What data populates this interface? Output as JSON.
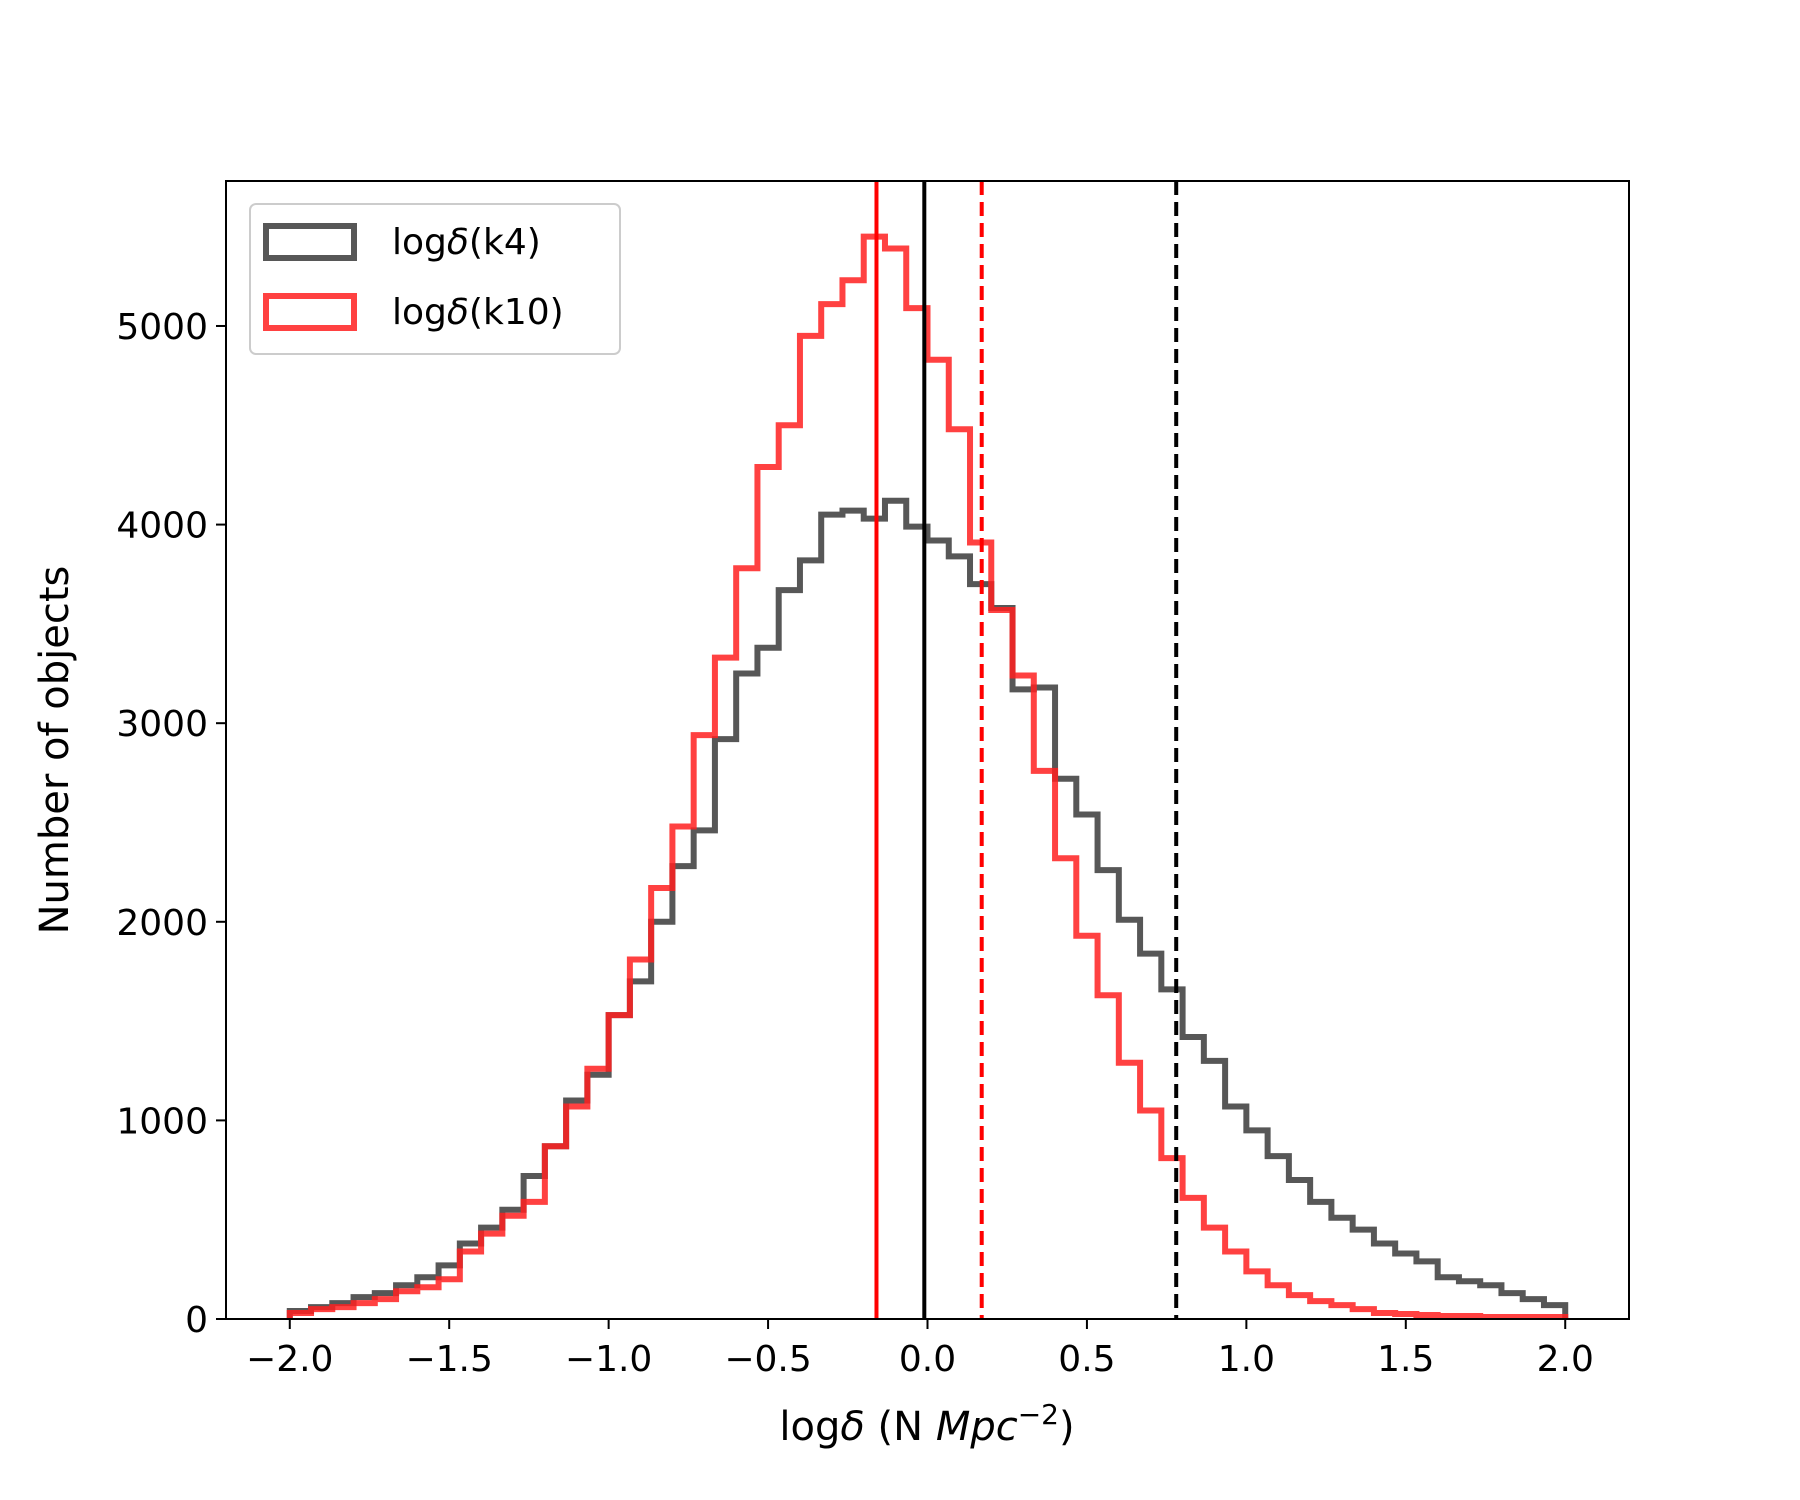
{
  "chart_data": {
    "type": "histogram",
    "xlabel_prefix": "log",
    "xlabel_delta": "δ",
    "xlabel_unit": " (N ",
    "xlabel_italic": "Mpc",
    "xlabel_exp": "−2",
    "xlabel_suffix": ")",
    "ylabel": "Number of objects",
    "xlim": [
      -2.2,
      2.2
    ],
    "ylim": [
      0,
      5730
    ],
    "xticks": [
      -2.0,
      -1.5,
      -1.0,
      -0.5,
      0.0,
      0.5,
      1.0,
      1.5,
      2.0
    ],
    "xtick_labels": [
      "−2.0",
      "−1.5",
      "−1.0",
      "−0.5",
      "0.0",
      "0.5",
      "1.0",
      "1.5",
      "2.0"
    ],
    "yticks": [
      0,
      1000,
      2000,
      3000,
      4000,
      5000
    ],
    "ytick_labels": [
      "0",
      "1000",
      "2000",
      "3000",
      "4000",
      "5000"
    ],
    "bin_edges_range": [
      -2.0,
      2.0
    ],
    "bin_count": 60,
    "legend_location": "upper-left",
    "series": [
      {
        "name": "k4",
        "legend_label_prefix": "log",
        "legend_label_delta": "δ",
        "legend_label_suffix": "(k4)",
        "color": "#3a3a3a",
        "values": [
          40,
          60,
          80,
          110,
          130,
          170,
          210,
          270,
          380,
          460,
          550,
          720,
          870,
          1100,
          1230,
          1530,
          1700,
          2000,
          2280,
          2460,
          2920,
          3250,
          3380,
          3670,
          3820,
          4050,
          4070,
          4030,
          4120,
          3990,
          3920,
          3840,
          3700,
          3580,
          3170,
          3180,
          2720,
          2540,
          2260,
          2010,
          1840,
          1660,
          1420,
          1300,
          1070,
          950,
          820,
          700,
          590,
          510,
          450,
          380,
          330,
          290,
          210,
          190,
          170,
          130,
          100,
          70
        ]
      },
      {
        "name": "k10",
        "legend_label_prefix": "log",
        "legend_label_delta": "δ",
        "legend_label_suffix": "(k10)",
        "color": "#ff2020",
        "values": [
          30,
          50,
          60,
          80,
          100,
          140,
          160,
          200,
          340,
          430,
          520,
          590,
          870,
          1070,
          1260,
          1530,
          1810,
          2170,
          2480,
          2940,
          3330,
          3780,
          4290,
          4500,
          4950,
          5110,
          5230,
          5450,
          5390,
          5090,
          4830,
          4480,
          3910,
          3570,
          3240,
          2760,
          2320,
          1930,
          1630,
          1290,
          1050,
          810,
          610,
          460,
          340,
          240,
          170,
          120,
          90,
          70,
          50,
          30,
          25,
          20,
          15,
          15,
          10,
          10,
          10,
          10
        ]
      }
    ],
    "vlines": [
      {
        "name": "k10-median",
        "x": -0.16,
        "color": "#ff0000",
        "style": "solid"
      },
      {
        "name": "k4-median",
        "x": -0.01,
        "color": "#000000",
        "style": "solid"
      },
      {
        "name": "k10-threshold",
        "x": 0.17,
        "color": "#ff0000",
        "style": "dashed"
      },
      {
        "name": "k4-threshold",
        "x": 0.78,
        "color": "#000000",
        "style": "dashed"
      }
    ]
  }
}
